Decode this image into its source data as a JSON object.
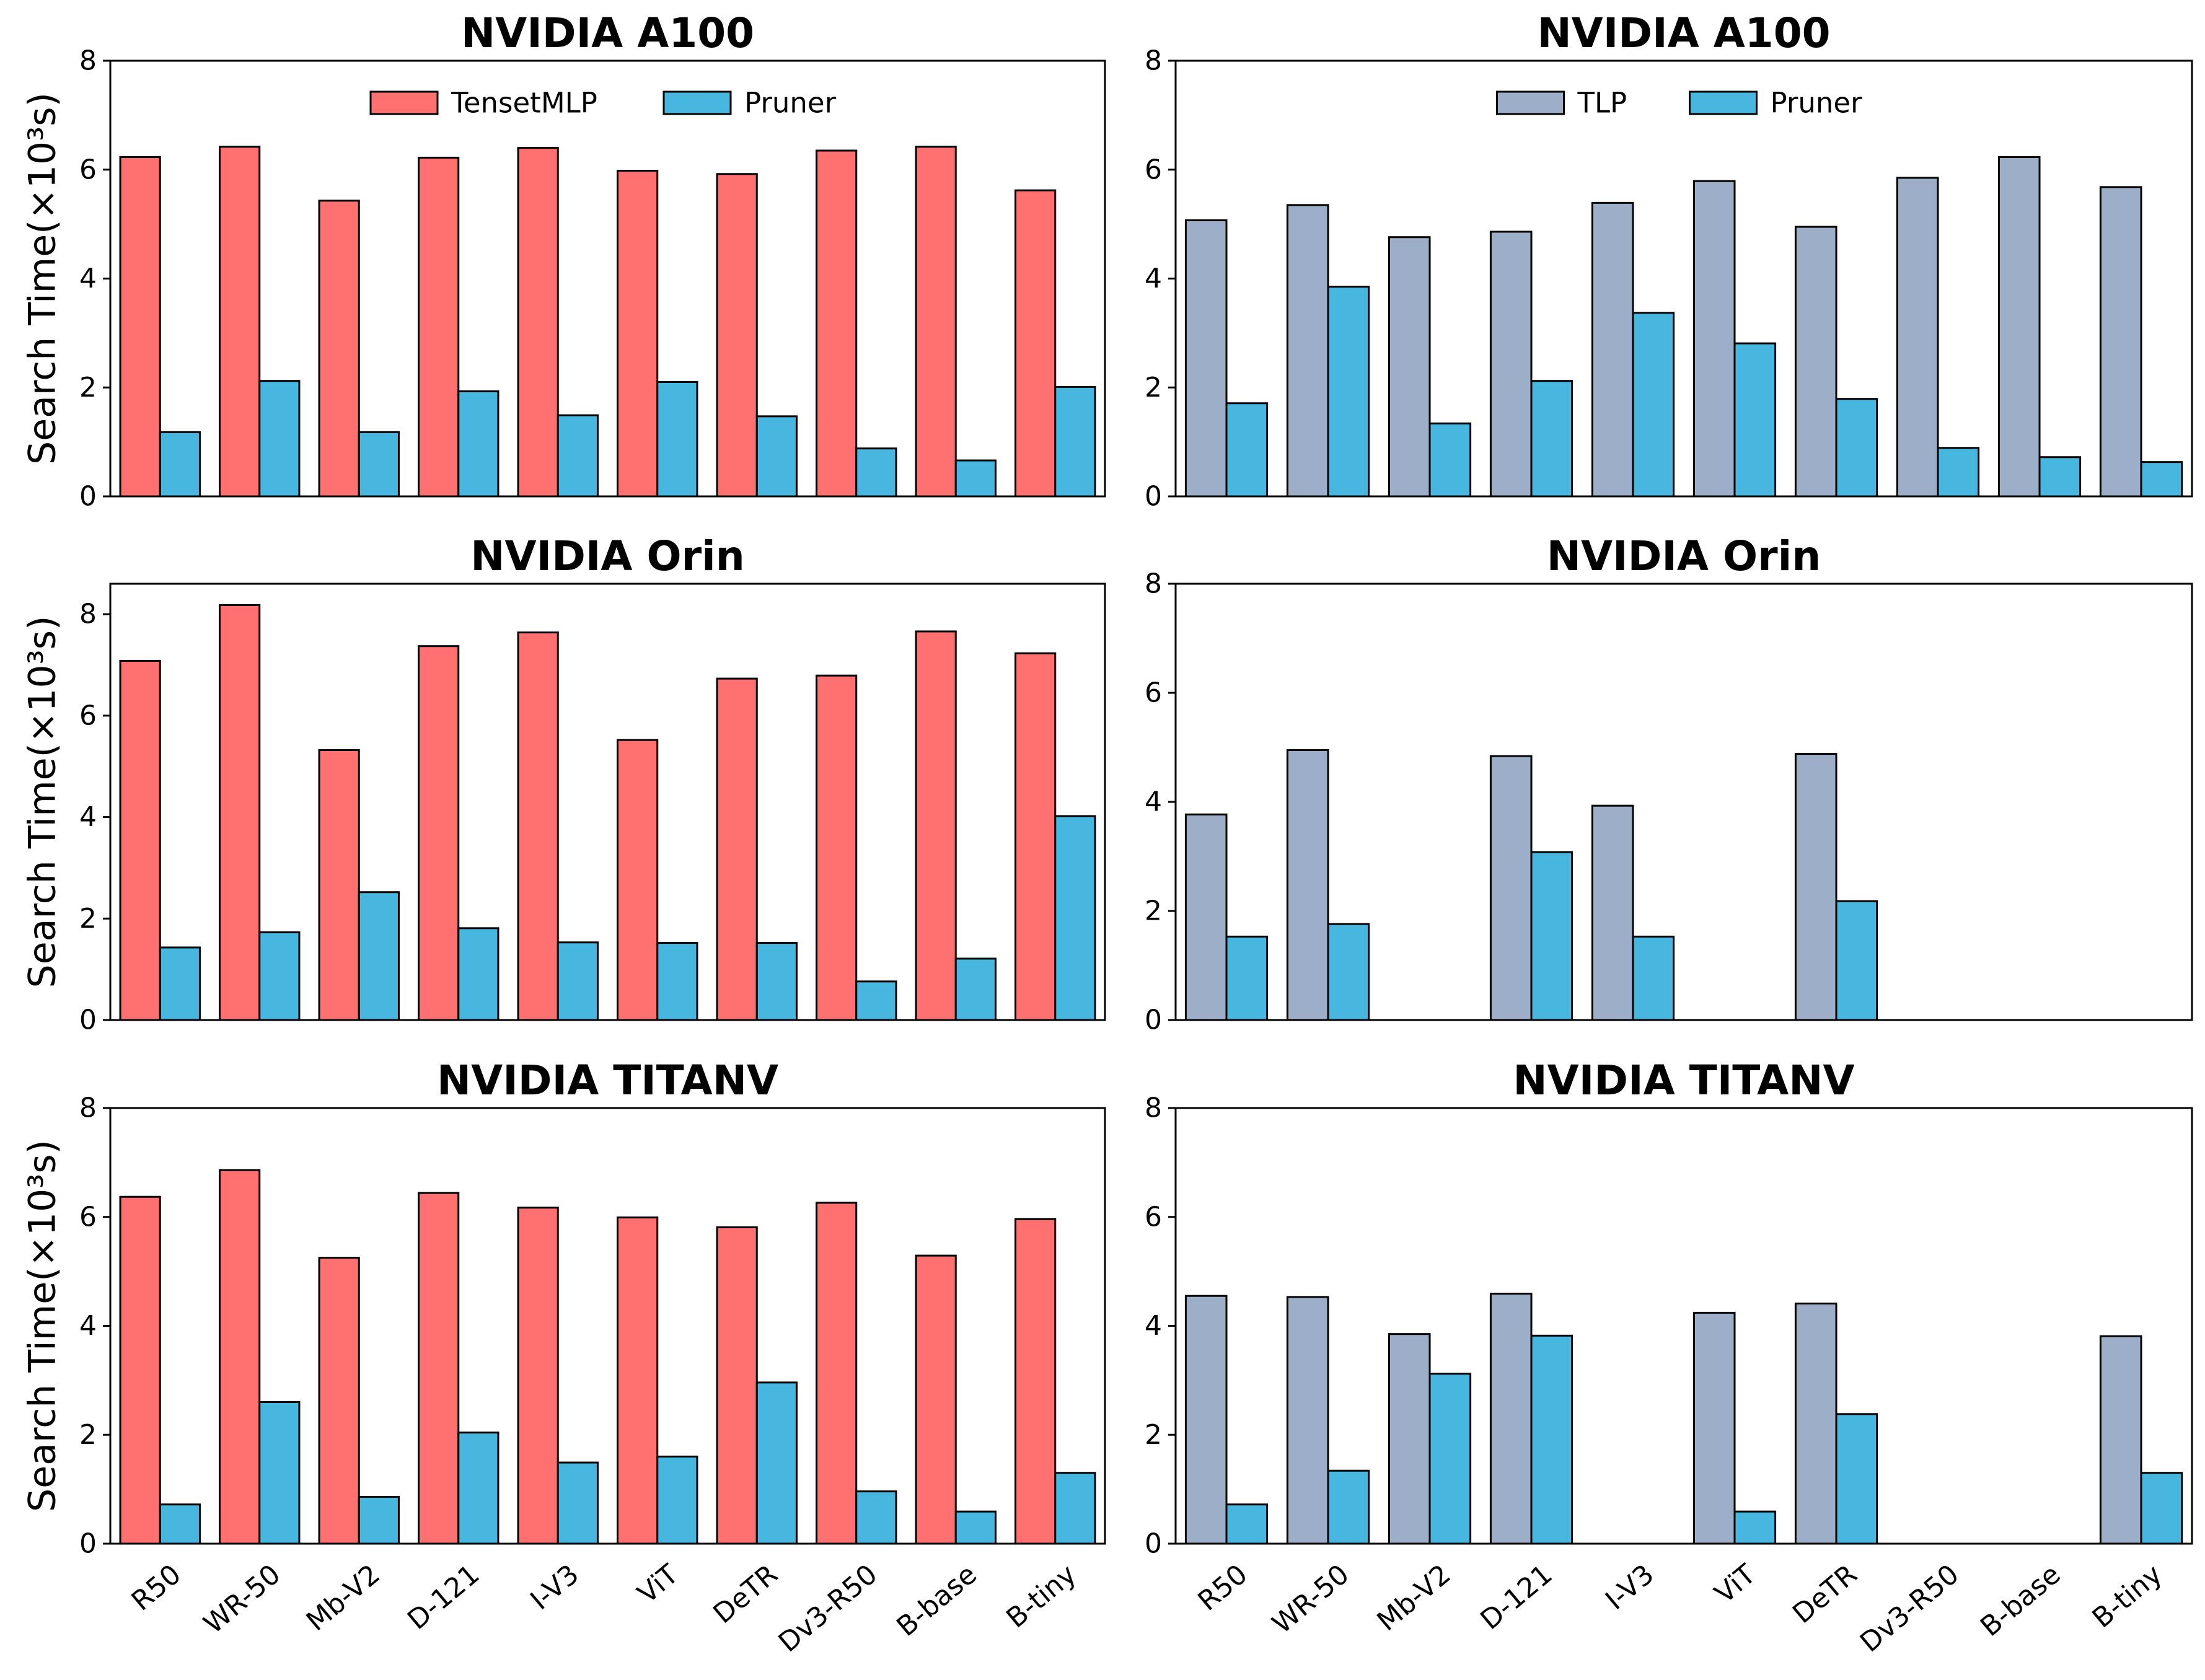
{
  "chart_data": [
    {
      "type": "bar",
      "title": "NVIDIA A100",
      "ylabel": "Search Time(×10³s)",
      "xlabel": "",
      "ylim": [
        0,
        8
      ],
      "yticks": [
        "0",
        "2",
        "4",
        "6",
        "8"
      ],
      "categories": [
        "R50",
        "WR-50",
        "Mb-V2",
        "D-121",
        "I-V3",
        "ViT",
        "DeTR",
        "Dv3-R50",
        "B-base",
        "B-tiny"
      ],
      "show_xticklabels": false,
      "legend": "top-center",
      "series": [
        {
          "name": "TensetMLP",
          "color": "#ff7070",
          "values": [
            6.23,
            6.42,
            5.43,
            6.22,
            6.4,
            5.98,
            5.92,
            6.35,
            6.42,
            5.62
          ]
        },
        {
          "name": "Pruner",
          "color": "#47b7e0",
          "values": [
            1.18,
            2.12,
            1.18,
            1.93,
            1.49,
            2.1,
            1.47,
            0.88,
            0.66,
            2.01
          ]
        }
      ]
    },
    {
      "type": "bar",
      "title": "NVIDIA A100",
      "ylabel": "",
      "xlabel": "",
      "ylim": [
        0,
        8
      ],
      "yticks": [
        "0",
        "2",
        "4",
        "6",
        "8"
      ],
      "categories": [
        "R50",
        "WR-50",
        "Mb-V2",
        "D-121",
        "I-V3",
        "ViT",
        "DeTR",
        "Dv3-R50",
        "B-base",
        "B-tiny"
      ],
      "show_xticklabels": false,
      "legend": "top-center",
      "series": [
        {
          "name": "TLP",
          "color": "#9caec8",
          "values": [
            5.07,
            5.35,
            4.76,
            4.86,
            5.39,
            5.79,
            4.95,
            5.85,
            6.23,
            5.68
          ]
        },
        {
          "name": "Pruner",
          "color": "#47b7e0",
          "values": [
            1.71,
            3.85,
            1.34,
            2.12,
            3.37,
            2.81,
            1.79,
            0.89,
            0.72,
            0.63
          ]
        }
      ]
    },
    {
      "type": "bar",
      "title": "NVIDIA Orin",
      "ylabel": "Search Time(×10³s)",
      "xlabel": "",
      "ylim": [
        0,
        8.6
      ],
      "yticks": [
        "0",
        "2",
        "4",
        "6",
        "8"
      ],
      "categories": [
        "R50",
        "WR-50",
        "Mb-V2",
        "D-121",
        "I-V3",
        "ViT",
        "DeTR",
        "Dv3-R50",
        "B-base",
        "B-tiny"
      ],
      "show_xticklabels": false,
      "legend": "none",
      "series": [
        {
          "name": "TensetMLP",
          "color": "#ff7070",
          "values": [
            7.08,
            8.18,
            5.32,
            7.37,
            7.64,
            5.52,
            6.73,
            6.79,
            7.66,
            7.23
          ]
        },
        {
          "name": "Pruner",
          "color": "#47b7e0",
          "values": [
            1.43,
            1.73,
            2.52,
            1.81,
            1.53,
            1.52,
            1.52,
            0.76,
            1.21,
            4.02
          ]
        }
      ]
    },
    {
      "type": "bar",
      "title": "NVIDIA Orin",
      "ylabel": "",
      "xlabel": "",
      "ylim": [
        0,
        8
      ],
      "yticks": [
        "0",
        "2",
        "4",
        "6",
        "8"
      ],
      "categories": [
        "R50",
        "WR-50",
        "Mb-V2",
        "D-121",
        "I-V3",
        "ViT",
        "DeTR",
        "Dv3-R50",
        "B-base",
        "B-tiny"
      ],
      "show_xticklabels": false,
      "legend": "none",
      "series": [
        {
          "name": "TLP",
          "color": "#9caec8",
          "values": [
            3.77,
            4.95,
            0,
            4.84,
            3.93,
            0,
            4.88,
            0,
            0,
            0
          ]
        },
        {
          "name": "Pruner",
          "color": "#47b7e0",
          "values": [
            1.53,
            1.76,
            0,
            3.08,
            1.53,
            0,
            2.18,
            0,
            0,
            0
          ]
        }
      ]
    },
    {
      "type": "bar",
      "title": "NVIDIA TITANV",
      "ylabel": "Search Time(×10³s)",
      "xlabel": "",
      "ylim": [
        0,
        8
      ],
      "yticks": [
        "0",
        "2",
        "4",
        "6",
        "8"
      ],
      "categories": [
        "R50",
        "WR-50",
        "Mb-V2",
        "D-121",
        "I-V3",
        "ViT",
        "DeTR",
        "Dv3-R50",
        "B-base",
        "B-tiny"
      ],
      "show_xticklabels": true,
      "legend": "none",
      "series": [
        {
          "name": "TensetMLP",
          "color": "#ff7070",
          "values": [
            6.37,
            6.86,
            5.25,
            6.44,
            6.17,
            5.99,
            5.81,
            6.26,
            5.29,
            5.96
          ]
        },
        {
          "name": "Pruner",
          "color": "#47b7e0",
          "values": [
            0.72,
            2.6,
            0.86,
            2.04,
            1.49,
            1.6,
            2.96,
            0.96,
            0.59,
            1.3
          ]
        }
      ]
    },
    {
      "type": "bar",
      "title": "NVIDIA TITANV",
      "ylabel": "",
      "xlabel": "",
      "ylim": [
        0,
        8
      ],
      "yticks": [
        "0",
        "2",
        "4",
        "6",
        "8"
      ],
      "categories": [
        "R50",
        "WR-50",
        "Mb-V2",
        "D-121",
        "I-V3",
        "ViT",
        "DeTR",
        "Dv3-R50",
        "B-base",
        "B-tiny"
      ],
      "show_xticklabels": true,
      "legend": "none",
      "series": [
        {
          "name": "TLP",
          "color": "#9caec8",
          "values": [
            4.55,
            4.53,
            3.85,
            4.59,
            0,
            4.24,
            4.41,
            0,
            0,
            3.81
          ]
        },
        {
          "name": "Pruner",
          "color": "#47b7e0",
          "values": [
            0.72,
            1.34,
            3.12,
            3.82,
            0,
            0.59,
            2.38,
            0,
            0,
            1.3
          ]
        }
      ]
    }
  ]
}
